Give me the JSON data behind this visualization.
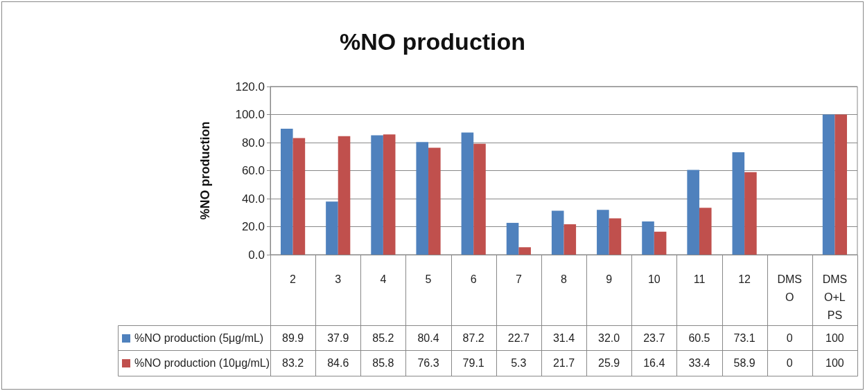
{
  "chart_data": {
    "type": "bar",
    "title": "%NO production",
    "ylabel": "%NO production",
    "categories": [
      "2",
      "3",
      "4",
      "5",
      "6",
      "7",
      "8",
      "9",
      "10",
      "11",
      "12",
      "DMSO",
      "DMSO+LPS"
    ],
    "series": [
      {
        "name": "%NO production (5μg/mL)",
        "color": "#4f81bd",
        "values": [
          89.9,
          37.9,
          85.2,
          80.4,
          87.2,
          22.7,
          31.4,
          32.0,
          23.7,
          60.5,
          73.1,
          0,
          100
        ],
        "value_labels": [
          "89.9",
          "37.9",
          "85.2",
          "80.4",
          "87.2",
          "22.7",
          "31.4",
          "32.0",
          "23.7",
          "60.5",
          "73.1",
          "0",
          "100"
        ]
      },
      {
        "name": "%NO production (10μg/mL)",
        "color": "#c0504d",
        "values": [
          83.2,
          84.6,
          85.8,
          76.3,
          79.1,
          5.3,
          21.7,
          25.9,
          16.4,
          33.4,
          58.9,
          0,
          100
        ],
        "value_labels": [
          "83.2",
          "84.6",
          "85.8",
          "76.3",
          "79.1",
          "5.3",
          "21.7",
          "25.9",
          "16.4",
          "33.4",
          "58.9",
          "0",
          "100"
        ]
      }
    ],
    "ylim": [
      0,
      120
    ],
    "yticks": [
      {
        "value": 0,
        "label": "0.0"
      },
      {
        "value": 20,
        "label": "20.0"
      },
      {
        "value": 40,
        "label": "40.0"
      },
      {
        "value": 60,
        "label": "60.0"
      },
      {
        "value": 80,
        "label": "80.0"
      },
      {
        "value": 100,
        "label": "100.0"
      },
      {
        "value": 120,
        "label": "120.0"
      }
    ],
    "grid": "y",
    "legend": "bottom"
  }
}
